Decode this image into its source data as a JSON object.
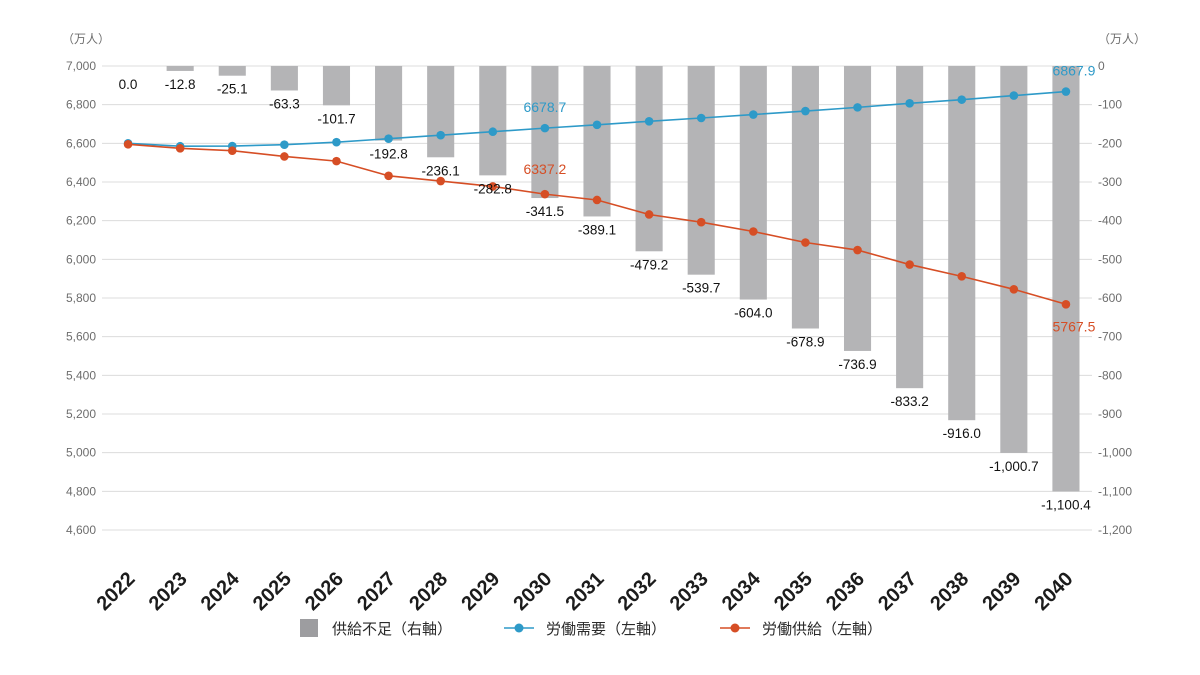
{
  "chart_data": {
    "type": "bar+line",
    "categories": [
      "2022",
      "2023",
      "2024",
      "2025",
      "2026",
      "2027",
      "2028",
      "2029",
      "2030",
      "2031",
      "2032",
      "2033",
      "2034",
      "2035",
      "2036",
      "2037",
      "2038",
      "2039",
      "2040"
    ],
    "left_axis": {
      "unit": "（万人）",
      "ylim": [
        4600,
        7000
      ],
      "ticks": [
        "7,000",
        "6,800",
        "6,600",
        "6,400",
        "6,200",
        "6,000",
        "5,800",
        "5,600",
        "5,400",
        "5,200",
        "5,000",
        "4,800",
        "4,600"
      ]
    },
    "right_axis": {
      "unit": "（万人）",
      "ylim": [
        -1200,
        0
      ],
      "ticks": [
        "0",
        "-100",
        "-200",
        "-300",
        "-400",
        "-500",
        "-600",
        "-700",
        "-800",
        "-900",
        "-1,000",
        "-1,100",
        "-1,200"
      ]
    },
    "series": [
      {
        "name": "供給不足（右軸）",
        "type": "bar",
        "axis": "right",
        "color": "#b4b4b6",
        "values": [
          0.0,
          -12.8,
          -25.1,
          -63.3,
          -101.7,
          -192.8,
          -236.1,
          -282.8,
          -341.5,
          -389.1,
          -479.2,
          -539.7,
          -604.0,
          -678.9,
          -736.9,
          -833.2,
          -916.0,
          -1000.7,
          -1100.4
        ],
        "labels": [
          "0.0",
          "-12.8",
          "-25.1",
          "-63.3",
          "-101.7",
          "-192.8",
          "-236.1",
          "-282.8",
          "-341.5",
          "-389.1",
          "-479.2",
          "-539.7",
          "-604.0",
          "-678.9",
          "-736.9",
          "-833.2",
          "-916.0",
          "-1,000.7",
          "-1,100.4"
        ]
      },
      {
        "name": "労働需要（左軸）",
        "type": "line",
        "axis": "left",
        "color": "#2e9ac8",
        "values": [
          6600,
          6585,
          6586,
          6593,
          6606,
          6624,
          6642,
          6660,
          6678.7,
          6696,
          6714,
          6731,
          6749,
          6767,
          6786,
          6807,
          6826,
          6847,
          6867.9
        ],
        "annotations": [
          {
            "index": 8,
            "text": "6678.7"
          },
          {
            "index": 18,
            "text": "6867.9"
          }
        ]
      },
      {
        "name": "労働供給（左軸）",
        "type": "line",
        "axis": "left",
        "color": "#d64e25",
        "values": [
          6595,
          6574,
          6562,
          6532,
          6508,
          6432,
          6405,
          6377,
          6337.2,
          6307,
          6232,
          6192,
          6144,
          6087,
          6048,
          5973,
          5912,
          5845,
          5767.5
        ],
        "annotations": [
          {
            "index": 8,
            "text": "6337.2"
          },
          {
            "index": 18,
            "text": "5767.5"
          }
        ]
      }
    ],
    "legend": {
      "position": "bottom-center",
      "entries": [
        "供給不足（右軸）",
        "労働需要（左軸）",
        "労働供給（左軸）"
      ]
    },
    "grid": true
  }
}
